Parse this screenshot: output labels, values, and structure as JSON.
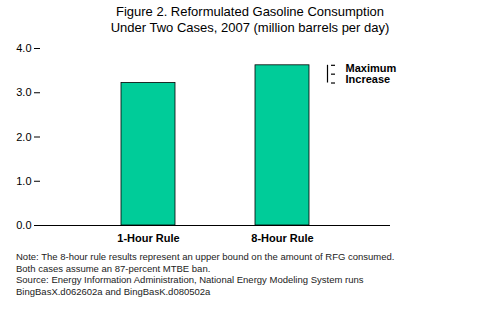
{
  "chart_data": {
    "type": "bar",
    "title": "Figure 2. Reformulated Gasoline Consumption\nUnder Two Cases, 2007 (million barrels per day)",
    "categories": [
      "1-Hour Rule",
      "8-Hour Rule"
    ],
    "values": [
      3.22,
      3.62
    ],
    "color": "#00CC99",
    "ylim": [
      0,
      4
    ],
    "yticks": [
      0,
      1,
      2,
      3,
      4
    ],
    "grid": false,
    "annotation": "Maximum\nIncrease",
    "footnote": "Note: The 8-hour rule results represent an upper bound on the amount of RFG consumed.\nBoth cases assume an 87-percent MTBE ban.\nSource: Energy Information Administration, National Energy Modeling System runs\nBingBasX.d062602a and BingBasK.d080502a"
  }
}
